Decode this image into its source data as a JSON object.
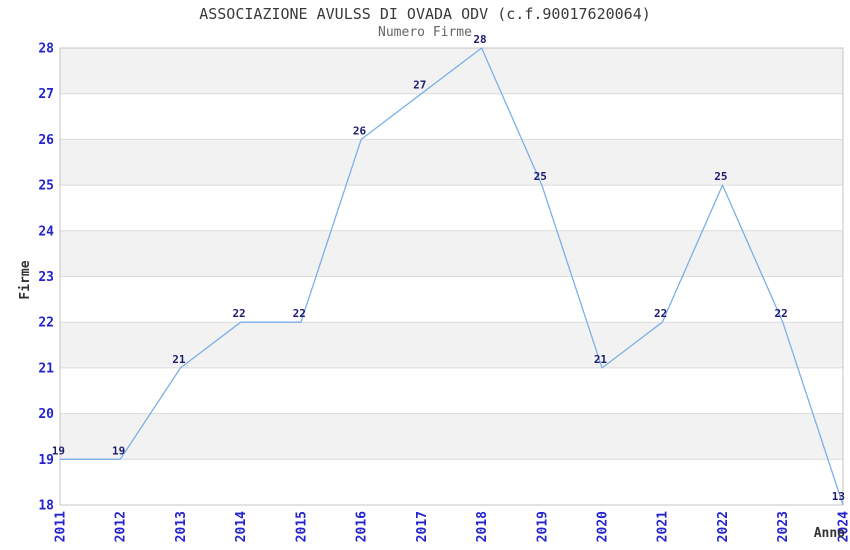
{
  "chart_data": {
    "type": "line",
    "title": "ASSOCIAZIONE AVULSS DI OVADA ODV (c.f.90017620064)",
    "subtitle": "Numero Firme",
    "xlabel": "Anno",
    "ylabel": "Firme",
    "x": [
      2011,
      2012,
      2013,
      2014,
      2015,
      2016,
      2017,
      2018,
      2019,
      2020,
      2021,
      2022,
      2023,
      2024
    ],
    "values": [
      19,
      19,
      21,
      22,
      22,
      26,
      27,
      28,
      25,
      21,
      22,
      25,
      22,
      13
    ],
    "point_labels": [
      "19",
      "19",
      "21",
      "22",
      "22",
      "26",
      "27",
      "28",
      "25",
      "21",
      "22",
      "25",
      "22",
      "13"
    ],
    "ylim": [
      18,
      28
    ],
    "y_ticks": [
      18,
      19,
      20,
      21,
      22,
      23,
      24,
      25,
      26,
      27,
      28
    ],
    "grid": "horizontal-integer-lines",
    "bands": "alternating-horizontal",
    "legend": "none",
    "markers": "none",
    "clamp_to_ylim": true,
    "colors": {
      "line": "#7cb0e8",
      "tick_label": "#2323cf",
      "point_label": "#1b1b70",
      "band_fill": "#f2f2f2",
      "grid_line": "#dcdcdc",
      "plot_border": "#c4c4c4",
      "title": "#3a3a3a",
      "subtitle": "#666666",
      "axis_title": "#333333",
      "background": "#ffffff"
    }
  }
}
